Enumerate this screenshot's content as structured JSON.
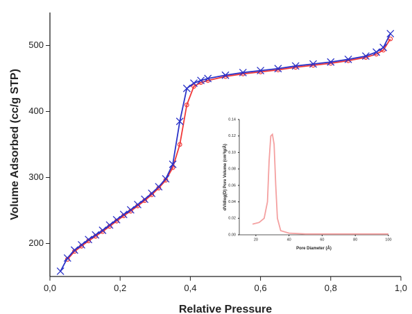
{
  "chart_data": [
    {
      "type": "line",
      "x_label": "Relative Pressure",
      "y_label": "Volume Adsorbed (cc/g STP)",
      "xlim": [
        0,
        1
      ],
      "ylim": [
        150,
        550
      ],
      "xticks": [
        {
          "value": 0,
          "label": "0,0"
        },
        {
          "value": 0.2,
          "label": "0,2"
        },
        {
          "value": 0.4,
          "label": "0,4"
        },
        {
          "value": 0.6,
          "label": "0,6"
        },
        {
          "value": 0.8,
          "label": "0,8"
        },
        {
          "value": 1,
          "label": "1,0"
        }
      ],
      "yticks": [
        200,
        300,
        400,
        500
      ],
      "series": [
        {
          "color": "#f03838",
          "marker": "circle",
          "x": [
            0.05,
            0.07,
            0.09,
            0.11,
            0.13,
            0.15,
            0.17,
            0.19,
            0.21,
            0.23,
            0.25,
            0.27,
            0.29,
            0.31,
            0.33,
            0.35,
            0.37,
            0.39,
            0.41,
            0.43,
            0.45,
            0.5,
            0.55,
            0.6,
            0.65,
            0.7,
            0.75,
            0.8,
            0.85,
            0.9,
            0.93,
            0.95,
            0.97
          ],
          "values": [
            176,
            188,
            196,
            204,
            211,
            218,
            226,
            234,
            242,
            249,
            257,
            265,
            274,
            284,
            296,
            315,
            350,
            410,
            438,
            444,
            447,
            453,
            457,
            460,
            463,
            467,
            470,
            473,
            477,
            482,
            487,
            493,
            510
          ]
        },
        {
          "color": "#2a32c8",
          "marker": "x",
          "x": [
            0.03,
            0.05,
            0.07,
            0.09,
            0.11,
            0.13,
            0.15,
            0.17,
            0.19,
            0.21,
            0.23,
            0.25,
            0.27,
            0.29,
            0.31,
            0.33,
            0.35,
            0.37,
            0.39,
            0.41,
            0.43,
            0.45,
            0.5,
            0.55,
            0.6,
            0.65,
            0.7,
            0.75,
            0.8,
            0.85,
            0.9,
            0.93,
            0.95,
            0.97
          ],
          "values": [
            158,
            178,
            190,
            198,
            206,
            213,
            220,
            228,
            236,
            244,
            251,
            259,
            267,
            276,
            286,
            298,
            320,
            385,
            435,
            443,
            447,
            450,
            455,
            459,
            462,
            465,
            469,
            472,
            475,
            479,
            484,
            490,
            497,
            518
          ]
        }
      ]
    },
    {
      "type": "line",
      "x_label": "Pore Diameter (Å)",
      "y_label": "dV/dlog(D) Pore Volume (cm³/g/Å)",
      "xlim": [
        10,
        100
      ],
      "ylim": [
        0,
        0.14
      ],
      "xticks": [
        20,
        40,
        60,
        80,
        100
      ],
      "yticks": [
        {
          "value": 0,
          "label": "0.00"
        },
        0.02,
        0.04,
        0.06,
        0.08,
        {
          "value": 0.1,
          "label": "0.10"
        },
        0.12,
        0.14
      ],
      "series": [
        {
          "color": "#f4a0a0",
          "marker": "none",
          "x": [
            18,
            22,
            25,
            27,
            28,
            29,
            30,
            31,
            32,
            33,
            35,
            40,
            50,
            60,
            80,
            100
          ],
          "values": [
            0.013,
            0.015,
            0.02,
            0.04,
            0.09,
            0.12,
            0.122,
            0.11,
            0.06,
            0.02,
            0.005,
            0.002,
            0.001,
            0.001,
            0.001,
            0.001
          ]
        }
      ]
    }
  ]
}
